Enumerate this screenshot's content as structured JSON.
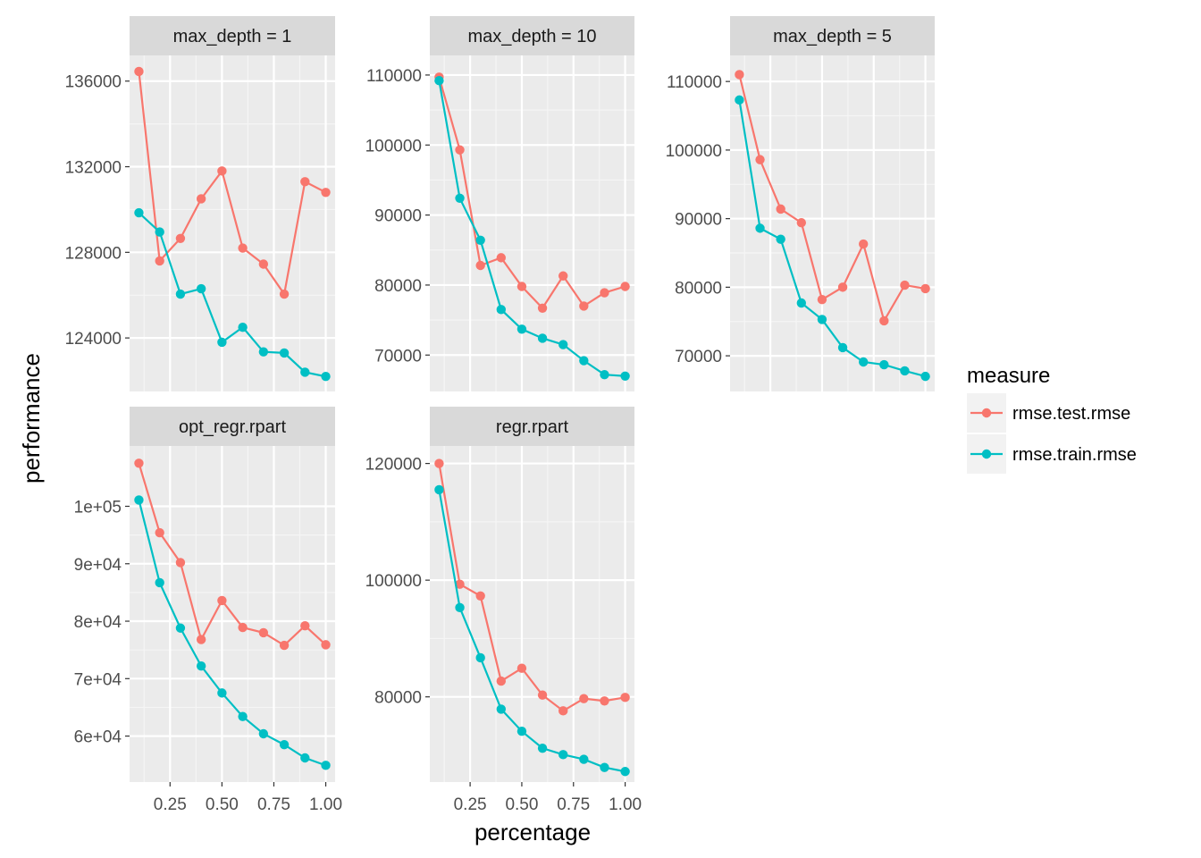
{
  "chart_data": {
    "type": "line",
    "xlabel": "percentage",
    "ylabel": "performance",
    "x_ticks": [
      "0.25",
      "0.50",
      "0.75",
      "1.00"
    ],
    "x": [
      0.1,
      0.2,
      0.3,
      0.4,
      0.5,
      0.6,
      0.7,
      0.8,
      0.9,
      1.0
    ],
    "xlim": [
      0.055,
      1.045
    ],
    "grid": true,
    "legend": {
      "title": "measure",
      "placement": "right",
      "entries": [
        {
          "name": "rmse.test.rmse",
          "color": "#F8766D"
        },
        {
          "name": "rmse.train.rmse",
          "color": "#00BFC4"
        }
      ]
    },
    "panels": [
      {
        "title": "max_depth = 1",
        "ylim": [
          121500,
          137200
        ],
        "y_ticks": [
          {
            "value": 124000,
            "label": "124000"
          },
          {
            "value": 128000,
            "label": "128000"
          },
          {
            "value": 132000,
            "label": "132000"
          },
          {
            "value": 136000,
            "label": "136000"
          }
        ],
        "series": [
          {
            "name": "rmse.test.rmse",
            "values": [
              136450,
              127600,
              128650,
              130500,
              131800,
              128200,
              127450,
              126050,
              131300,
              130800
            ]
          },
          {
            "name": "rmse.train.rmse",
            "values": [
              129850,
              128950,
              126050,
              126300,
              123800,
              124500,
              123350,
              123300,
              122400,
              122200
            ]
          }
        ]
      },
      {
        "title": "max_depth = 10",
        "ylim": [
          64800,
          112800
        ],
        "y_ticks": [
          {
            "value": 70000,
            "label": "70000"
          },
          {
            "value": 80000,
            "label": "80000"
          },
          {
            "value": 90000,
            "label": "90000"
          },
          {
            "value": 100000,
            "label": "100000"
          },
          {
            "value": 110000,
            "label": "110000"
          }
        ],
        "series": [
          {
            "name": "rmse.test.rmse",
            "values": [
              109700,
              99300,
              82800,
              83900,
              79800,
              76700,
              81300,
              77000,
              78900,
              79800
            ]
          },
          {
            "name": "rmse.train.rmse",
            "values": [
              109200,
              92400,
              86400,
              76500,
              73700,
              72400,
              71500,
              69200,
              67200,
              67000
            ]
          }
        ]
      },
      {
        "title": "max_depth = 5",
        "ylim": [
          64800,
          113800
        ],
        "y_ticks": [
          {
            "value": 70000,
            "label": "70000"
          },
          {
            "value": 80000,
            "label": "80000"
          },
          {
            "value": 90000,
            "label": "90000"
          },
          {
            "value": 100000,
            "label": "100000"
          },
          {
            "value": 110000,
            "label": "110000"
          }
        ],
        "series": [
          {
            "name": "rmse.test.rmse",
            "values": [
              111000,
              98600,
              91400,
              89400,
              78200,
              80000,
              86300,
              75100,
              80300,
              79800
            ]
          },
          {
            "name": "rmse.train.rmse",
            "values": [
              107300,
              88600,
              87000,
              77700,
              75300,
              71200,
              69100,
              68700,
              67800,
              67000
            ]
          }
        ]
      },
      {
        "title": "opt_regr.rpart",
        "ylim": [
          52000,
          110500
        ],
        "y_ticks": [
          {
            "value": 60000,
            "label": "6e+04"
          },
          {
            "value": 70000,
            "label": "7e+04"
          },
          {
            "value": 80000,
            "label": "8e+04"
          },
          {
            "value": 90000,
            "label": "9e+04"
          },
          {
            "value": 100000,
            "label": "1e+05"
          }
        ],
        "series": [
          {
            "name": "rmse.test.rmse",
            "values": [
              107500,
              95400,
              90200,
              76800,
              83600,
              78900,
              78000,
              75800,
              79200,
              75900
            ]
          },
          {
            "name": "rmse.train.rmse",
            "values": [
              101100,
              86700,
              78800,
              72200,
              67500,
              63400,
              60400,
              58500,
              56200,
              54900
            ]
          }
        ]
      },
      {
        "title": "regr.rpart",
        "ylim": [
          65400,
          123000
        ],
        "y_ticks": [
          {
            "value": 80000,
            "label": "80000"
          },
          {
            "value": 100000,
            "label": "100000"
          },
          {
            "value": 120000,
            "label": "120000"
          }
        ],
        "series": [
          {
            "name": "rmse.test.rmse",
            "values": [
              120000,
              99300,
              97300,
              82700,
              84900,
              80300,
              77600,
              79700,
              79300,
              79900
            ]
          },
          {
            "name": "rmse.train.rmse",
            "values": [
              115500,
              95300,
              86700,
              77900,
              74100,
              71200,
              70100,
              69300,
              67900,
              67200
            ]
          }
        ]
      }
    ]
  }
}
